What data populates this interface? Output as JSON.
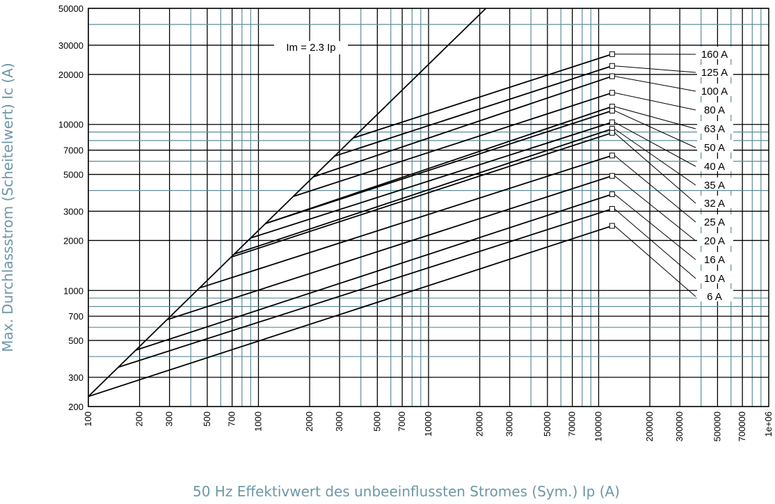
{
  "chart_data": {
    "type": "line",
    "x_scale": "log",
    "y_scale": "log",
    "xlim": [
      100,
      1000000
    ],
    "ylim": [
      200,
      50000
    ],
    "xlabel": "50 Hz Effektivwert des unbeeinflussten Stromes (Sym.) Ip (A)",
    "ylabel": "Max. Durchlassstrom (Scheitelwert) Ic (A)",
    "x_ticks": [
      "100",
      "200",
      "300",
      "500",
      "700",
      "1000",
      "2000",
      "3000",
      "5000",
      "7000",
      "10000",
      "20000",
      "30000",
      "50000",
      "70000",
      "100000",
      "200000",
      "300000",
      "500000",
      "700000",
      "1e+06"
    ],
    "y_ticks": [
      "200",
      "300",
      "500",
      "700",
      "1000",
      "2000",
      "3000",
      "5000",
      "7000",
      "10000",
      "20000",
      "30000",
      "50000"
    ],
    "reference_line": {
      "label": "Im = 2.3 Ip",
      "factor": 2.3
    },
    "series": [
      {
        "name": "160 A",
        "x": [
          3600,
          120000
        ],
        "y": [
          8280,
          26500
        ]
      },
      {
        "name": "125 A",
        "x": [
          2800,
          120000
        ],
        "y": [
          6440,
          22500
        ]
      },
      {
        "name": "100 A",
        "x": [
          2100,
          120000
        ],
        "y": [
          4830,
          19500
        ]
      },
      {
        "name": "80 A",
        "x": [
          1600,
          120000
        ],
        "y": [
          3680,
          15500
        ]
      },
      {
        "name": "63 A",
        "x": [
          1100,
          120000
        ],
        "y": [
          2530,
          12800
        ]
      },
      {
        "name": "50 A",
        "x": [
          1100,
          120000
        ],
        "y": [
          2530,
          12100
        ]
      },
      {
        "name": "40 A",
        "x": [
          900,
          120000
        ],
        "y": [
          2070,
          10300
        ]
      },
      {
        "name": "35 A",
        "x": [
          720,
          120000
        ],
        "y": [
          1656,
          9400
        ]
      },
      {
        "name": "32 A",
        "x": [
          690,
          120000
        ],
        "y": [
          1587,
          8900
        ]
      },
      {
        "name": "25 A",
        "x": [
          450,
          120000
        ],
        "y": [
          1035,
          6500
        ]
      },
      {
        "name": "20 A",
        "x": [
          290,
          120000
        ],
        "y": [
          667,
          4900
        ]
      },
      {
        "name": "16 A",
        "x": [
          190,
          120000
        ],
        "y": [
          437,
          3800
        ]
      },
      {
        "name": "10 A",
        "x": [
          150,
          120000
        ],
        "y": [
          345,
          3100
        ]
      },
      {
        "name": "6 A",
        "x": [
          100,
          120000
        ],
        "y": [
          230,
          2450
        ]
      }
    ]
  }
}
